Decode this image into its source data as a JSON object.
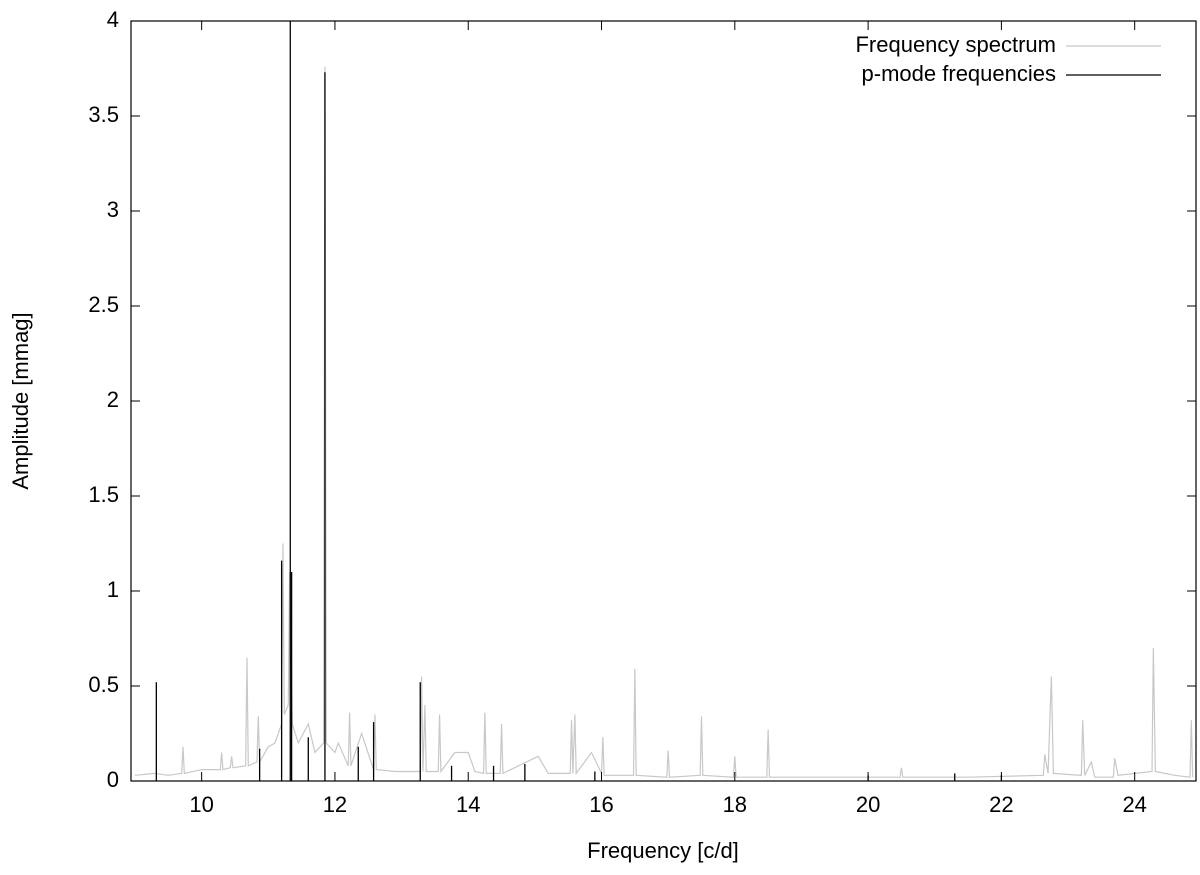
{
  "chart_data": {
    "type": "line",
    "xlabel": "Frequency [c/d]",
    "ylabel": "Amplitude [mmag]",
    "xlim": [
      8.94,
      24.92
    ],
    "ylim": [
      0,
      4
    ],
    "xticks": [
      10,
      12,
      14,
      16,
      18,
      20,
      22,
      24
    ],
    "yticks": [
      0,
      0.5,
      1,
      1.5,
      2,
      2.5,
      3,
      3.5,
      4
    ],
    "legend": "top-right",
    "series": [
      {
        "name": "Frequency spectrum",
        "color": "#c8c8c8",
        "style": "line",
        "x": [
          9.0,
          9.3,
          9.5,
          9.7,
          9.72,
          9.74,
          10.0,
          10.28,
          10.3,
          10.32,
          10.43,
          10.45,
          10.47,
          10.66,
          10.68,
          10.7,
          10.83,
          10.85,
          10.87,
          11.0,
          11.1,
          11.2,
          11.22,
          11.24,
          11.3,
          11.32,
          11.36,
          11.45,
          11.6,
          11.7,
          11.83,
          11.85,
          11.87,
          12.0,
          12.05,
          12.2,
          12.22,
          12.24,
          12.4,
          12.58,
          12.6,
          12.62,
          12.9,
          13.28,
          13.3,
          13.32,
          13.35,
          13.37,
          13.55,
          13.57,
          13.59,
          13.8,
          14.0,
          14.1,
          14.23,
          14.25,
          14.27,
          14.48,
          14.5,
          14.52,
          15.05,
          15.2,
          15.53,
          15.55,
          15.57,
          15.6,
          15.62,
          15.85,
          16.0,
          16.02,
          16.04,
          16.48,
          16.5,
          16.52,
          16.98,
          17.0,
          17.02,
          17.48,
          17.5,
          17.52,
          17.98,
          18.0,
          18.02,
          18.48,
          18.5,
          18.52,
          19.5,
          20.48,
          20.5,
          20.52,
          21.5,
          22.63,
          22.65,
          22.7,
          22.75,
          22.78,
          23.2,
          23.22,
          23.25,
          23.35,
          23.4,
          23.68,
          23.7,
          23.75,
          24.26,
          24.28,
          24.31,
          24.6,
          24.83,
          24.85,
          24.87
        ],
        "values": [
          0.03,
          0.04,
          0.03,
          0.04,
          0.18,
          0.04,
          0.06,
          0.06,
          0.15,
          0.06,
          0.07,
          0.13,
          0.07,
          0.08,
          0.65,
          0.08,
          0.1,
          0.34,
          0.1,
          0.18,
          0.2,
          0.3,
          1.25,
          0.35,
          0.4,
          1.1,
          0.3,
          0.2,
          0.3,
          0.15,
          0.2,
          3.76,
          0.2,
          0.15,
          0.2,
          0.08,
          0.36,
          0.08,
          0.25,
          0.06,
          0.35,
          0.06,
          0.05,
          0.05,
          0.55,
          0.05,
          0.4,
          0.05,
          0.05,
          0.35,
          0.05,
          0.15,
          0.15,
          0.05,
          0.04,
          0.36,
          0.04,
          0.04,
          0.3,
          0.04,
          0.13,
          0.04,
          0.04,
          0.32,
          0.04,
          0.35,
          0.04,
          0.15,
          0.04,
          0.23,
          0.03,
          0.03,
          0.59,
          0.03,
          0.02,
          0.16,
          0.02,
          0.03,
          0.34,
          0.03,
          0.02,
          0.13,
          0.02,
          0.02,
          0.27,
          0.02,
          0.02,
          0.02,
          0.07,
          0.02,
          0.02,
          0.03,
          0.14,
          0.04,
          0.55,
          0.04,
          0.03,
          0.32,
          0.03,
          0.1,
          0.02,
          0.02,
          0.12,
          0.03,
          0.05,
          0.7,
          0.05,
          0.03,
          0.02,
          0.32,
          0.02
        ]
      },
      {
        "name": "p-mode frequencies",
        "color": "#000000",
        "style": "impulses",
        "x": [
          9.32,
          10.87,
          11.2,
          11.33,
          11.35,
          11.6,
          11.85,
          12.35,
          12.58,
          13.28,
          13.75,
          14.38,
          14.85,
          15.9,
          20.0,
          21.3,
          22.0
        ],
        "values": [
          0.52,
          0.17,
          1.16,
          4.0,
          1.1,
          0.23,
          3.73,
          0.18,
          0.31,
          0.52,
          0.08,
          0.08,
          0.09,
          0.05,
          0.03,
          0.04,
          0.03
        ]
      }
    ]
  }
}
